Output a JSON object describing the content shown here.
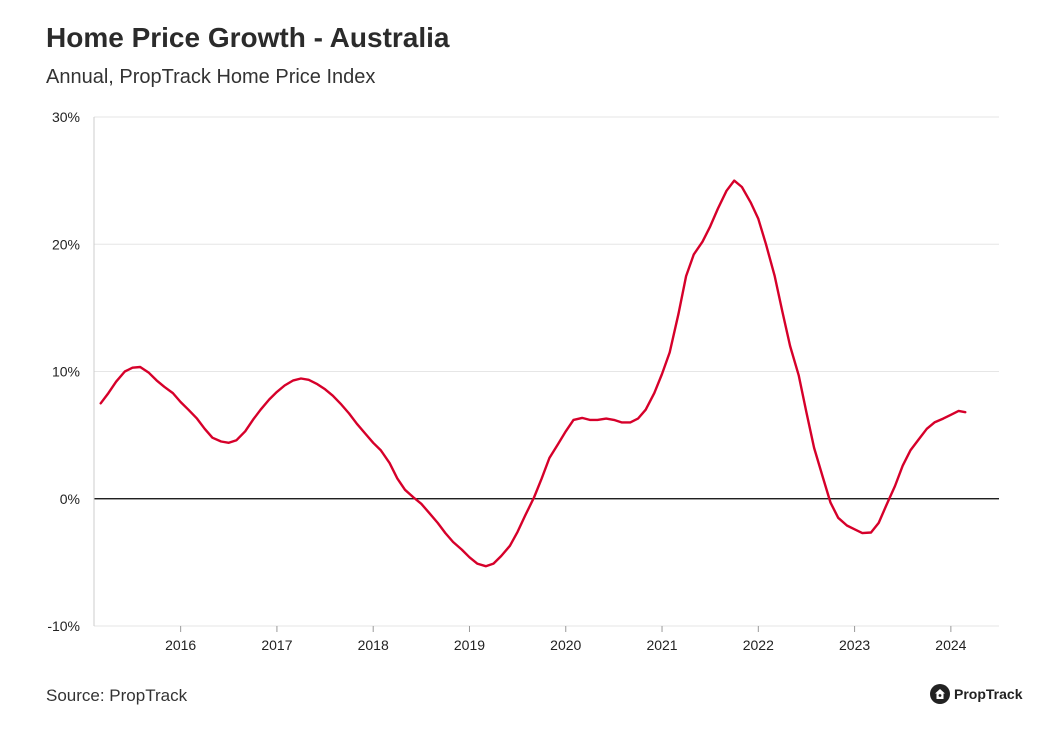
{
  "header": {
    "title": "Home Price Growth - Australia",
    "subtitle": "Annual, PropTrack Home Price Index"
  },
  "footer": {
    "source": "Source: PropTrack",
    "brand": "PropTrack",
    "brand_icon": "house-icon"
  },
  "colors": {
    "series": "#d6002a",
    "zero_line": "#000000",
    "grid": "#e6e6e6"
  },
  "chart_data": {
    "type": "line",
    "title": "Home Price Growth - Australia",
    "subtitle": "Annual, PropTrack Home Price Index",
    "xlabel": "",
    "ylabel": "",
    "xlim": [
      2015.1,
      2024.5
    ],
    "ylim": [
      -10,
      30
    ],
    "y_ticks": [
      -10,
      0,
      10,
      20,
      30
    ],
    "y_tick_labels": [
      "-10%",
      "0%",
      "10%",
      "20%",
      "30%"
    ],
    "x_ticks": [
      2016,
      2017,
      2018,
      2019,
      2020,
      2021,
      2022,
      2023,
      2024
    ],
    "x_tick_labels": [
      "2016",
      "2017",
      "2018",
      "2019",
      "2020",
      "2021",
      "2022",
      "2023",
      "2024"
    ],
    "grid": true,
    "series": [
      {
        "name": "",
        "color": "#d6002a",
        "points": [
          [
            2015.17,
            7.5
          ],
          [
            2015.25,
            8.3
          ],
          [
            2015.33,
            9.2
          ],
          [
            2015.42,
            10.0
          ],
          [
            2015.5,
            10.3
          ],
          [
            2015.58,
            10.35
          ],
          [
            2015.67,
            9.9
          ],
          [
            2015.75,
            9.3
          ],
          [
            2015.83,
            8.8
          ],
          [
            2015.92,
            8.3
          ],
          [
            2016.0,
            7.6
          ],
          [
            2016.08,
            7.0
          ],
          [
            2016.17,
            6.3
          ],
          [
            2016.25,
            5.5
          ],
          [
            2016.33,
            4.8
          ],
          [
            2016.42,
            4.5
          ],
          [
            2016.5,
            4.4
          ],
          [
            2016.58,
            4.6
          ],
          [
            2016.67,
            5.3
          ],
          [
            2016.75,
            6.2
          ],
          [
            2016.83,
            7.0
          ],
          [
            2016.92,
            7.8
          ],
          [
            2017.0,
            8.4
          ],
          [
            2017.08,
            8.9
          ],
          [
            2017.17,
            9.3
          ],
          [
            2017.25,
            9.45
          ],
          [
            2017.33,
            9.35
          ],
          [
            2017.42,
            9.0
          ],
          [
            2017.5,
            8.6
          ],
          [
            2017.58,
            8.1
          ],
          [
            2017.67,
            7.4
          ],
          [
            2017.75,
            6.7
          ],
          [
            2017.83,
            5.9
          ],
          [
            2017.92,
            5.1
          ],
          [
            2018.0,
            4.4
          ],
          [
            2018.08,
            3.8
          ],
          [
            2018.17,
            2.8
          ],
          [
            2018.25,
            1.6
          ],
          [
            2018.33,
            0.7
          ],
          [
            2018.42,
            0.1
          ],
          [
            2018.5,
            -0.4
          ],
          [
            2018.58,
            -1.1
          ],
          [
            2018.67,
            -1.9
          ],
          [
            2018.75,
            -2.7
          ],
          [
            2018.83,
            -3.4
          ],
          [
            2018.92,
            -4.0
          ],
          [
            2019.0,
            -4.6
          ],
          [
            2019.08,
            -5.1
          ],
          [
            2019.17,
            -5.3
          ],
          [
            2019.25,
            -5.1
          ],
          [
            2019.33,
            -4.5
          ],
          [
            2019.42,
            -3.7
          ],
          [
            2019.5,
            -2.6
          ],
          [
            2019.58,
            -1.3
          ],
          [
            2019.67,
            0.1
          ],
          [
            2019.75,
            1.6
          ],
          [
            2019.83,
            3.2
          ],
          [
            2019.92,
            4.3
          ],
          [
            2020.0,
            5.3
          ],
          [
            2020.08,
            6.2
          ],
          [
            2020.17,
            6.35
          ],
          [
            2020.25,
            6.2
          ],
          [
            2020.33,
            6.2
          ],
          [
            2020.42,
            6.3
          ],
          [
            2020.5,
            6.2
          ],
          [
            2020.58,
            6.0
          ],
          [
            2020.67,
            6.0
          ],
          [
            2020.75,
            6.3
          ],
          [
            2020.83,
            7.0
          ],
          [
            2020.92,
            8.3
          ],
          [
            2021.0,
            9.8
          ],
          [
            2021.08,
            11.5
          ],
          [
            2021.17,
            14.5
          ],
          [
            2021.25,
            17.5
          ],
          [
            2021.33,
            19.2
          ],
          [
            2021.42,
            20.2
          ],
          [
            2021.5,
            21.4
          ],
          [
            2021.58,
            22.8
          ],
          [
            2021.67,
            24.2
          ],
          [
            2021.75,
            25.0
          ],
          [
            2021.83,
            24.5
          ],
          [
            2021.92,
            23.3
          ],
          [
            2022.0,
            22.0
          ],
          [
            2022.08,
            20.0
          ],
          [
            2022.17,
            17.5
          ],
          [
            2022.25,
            14.7
          ],
          [
            2022.33,
            12.0
          ],
          [
            2022.42,
            9.7
          ],
          [
            2022.5,
            6.8
          ],
          [
            2022.58,
            4.0
          ],
          [
            2022.67,
            1.7
          ],
          [
            2022.75,
            -0.3
          ],
          [
            2022.83,
            -1.5
          ],
          [
            2022.92,
            -2.1
          ],
          [
            2023.0,
            -2.4
          ],
          [
            2023.08,
            -2.7
          ],
          [
            2023.17,
            -2.65
          ],
          [
            2023.25,
            -1.9
          ],
          [
            2023.33,
            -0.5
          ],
          [
            2023.42,
            1.0
          ],
          [
            2023.5,
            2.6
          ],
          [
            2023.58,
            3.8
          ],
          [
            2023.67,
            4.7
          ],
          [
            2023.75,
            5.5
          ],
          [
            2023.83,
            6.0
          ],
          [
            2023.92,
            6.3
          ],
          [
            2024.0,
            6.6
          ],
          [
            2024.08,
            6.9
          ],
          [
            2024.15,
            6.8
          ]
        ]
      }
    ]
  }
}
